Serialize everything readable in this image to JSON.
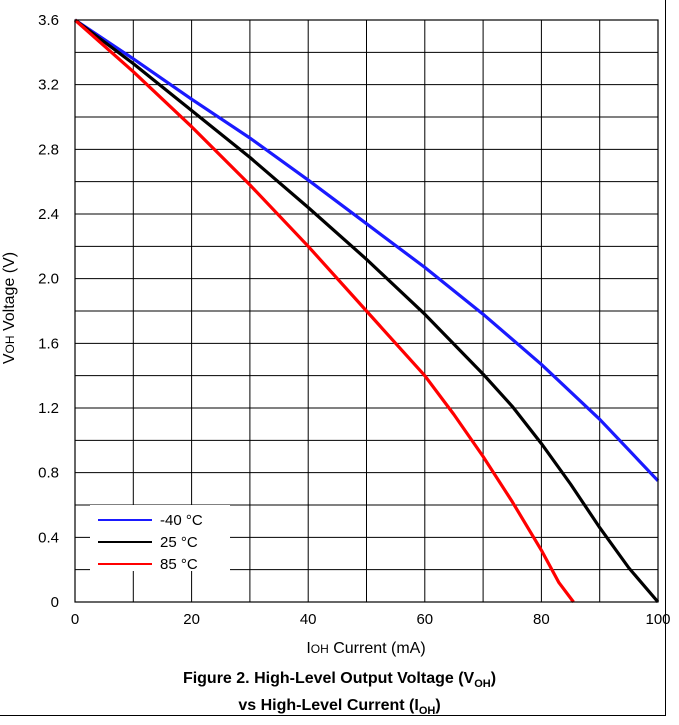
{
  "chart_data": {
    "type": "line",
    "xlabel_main": "I",
    "xlabel_sub": "OH",
    "xlabel_rest": " Current (mA)",
    "ylabel_main": "V",
    "ylabel_sub": "OH",
    "ylabel_rest": " Voltage (V)",
    "xlim": [
      0,
      100
    ],
    "ylim": [
      0,
      3.6
    ],
    "xticks": [
      0,
      20,
      40,
      60,
      80,
      100
    ],
    "yticks": [
      0,
      0.4,
      0.8,
      1.2,
      1.6,
      2.0,
      2.4,
      2.8,
      3.2,
      3.6
    ],
    "xtick_labels": [
      "0",
      "20",
      "40",
      "60",
      "80",
      "100"
    ],
    "ytick_labels": [
      "0",
      "0.4",
      "0.8",
      "1.2",
      "1.6",
      "2.0",
      "2.4",
      "2.8",
      "3.2",
      "3.6"
    ],
    "grid": true,
    "legend_position": "bottom-left",
    "series": [
      {
        "name": "-40 °C",
        "color": "#1a1aff",
        "x": [
          0,
          10,
          20,
          30,
          40,
          50,
          60,
          70,
          80,
          90,
          100
        ],
        "y": [
          3.6,
          3.36,
          3.11,
          2.87,
          2.61,
          2.34,
          2.07,
          1.78,
          1.47,
          1.13,
          0.75
        ]
      },
      {
        "name": "25 °C",
        "color": "#000000",
        "x": [
          0,
          10,
          20,
          30,
          40,
          50,
          60,
          70,
          75,
          80,
          85,
          90,
          95,
          100
        ],
        "y": [
          3.6,
          3.33,
          3.04,
          2.75,
          2.44,
          2.12,
          1.78,
          1.41,
          1.21,
          0.98,
          0.73,
          0.46,
          0.21,
          0
        ]
      },
      {
        "name": "85 °C",
        "color": "#ff0000",
        "x": [
          0,
          10,
          20,
          30,
          40,
          50,
          60,
          65,
          70,
          75,
          80,
          83,
          85.5
        ],
        "y": [
          3.6,
          3.28,
          2.94,
          2.58,
          2.2,
          1.8,
          1.4,
          1.16,
          0.9,
          0.62,
          0.32,
          0.12,
          0
        ]
      }
    ]
  },
  "caption": {
    "line1_a": "Figure 2. High-Level Output Voltage (V",
    "line1_sub": "OH",
    "line1_b": ")",
    "line2_a": "vs High-Level Current (I",
    "line2_sub": "OH",
    "line2_b": ")"
  }
}
